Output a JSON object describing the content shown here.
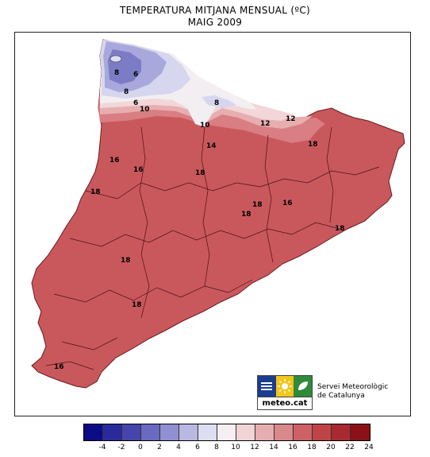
{
  "title": {
    "line1": "TEMPERATURA MITJANA MENSUAL (ºC)",
    "line2": "MAIG 2009"
  },
  "legend": {
    "colors": [
      "#0b0b86",
      "#2a2a9c",
      "#4545ab",
      "#6a6ac0",
      "#9090d2",
      "#b8b8e2",
      "#dedef2",
      "#f6eef0",
      "#f0d4d6",
      "#e6aeb0",
      "#d9888b",
      "#cc6266",
      "#be4448",
      "#a82a30",
      "#8c1018"
    ],
    "labels": [
      "-4",
      "-2",
      "0",
      "2",
      "4",
      "6",
      "8",
      "10",
      "12",
      "14",
      "16",
      "18",
      "20",
      "22",
      "24"
    ]
  },
  "map": {
    "region_colors": {
      "main": "#c9585c",
      "t16": "#d97e82",
      "t14": "#e7aeb0",
      "t12": "#f2d6d8",
      "t10": "#f3eef2",
      "t8": "#d6d6ee",
      "t6": "#a8a8dc",
      "t4": "#7c7cc6"
    },
    "contour_labels": [
      "8",
      "6",
      "8",
      "6",
      "10",
      "8",
      "10",
      "12",
      "12",
      "14",
      "16",
      "16",
      "18",
      "18",
      "16",
      "18",
      "18",
      "18",
      "18",
      "18",
      "16",
      "18"
    ]
  },
  "logo": {
    "name": "meteo.cat",
    "org_line1": "Servei Meteorològic",
    "org_line2": "de Catalunya",
    "colors": [
      "#1b3d8f",
      "#f2c619",
      "#2f8a3a"
    ]
  }
}
